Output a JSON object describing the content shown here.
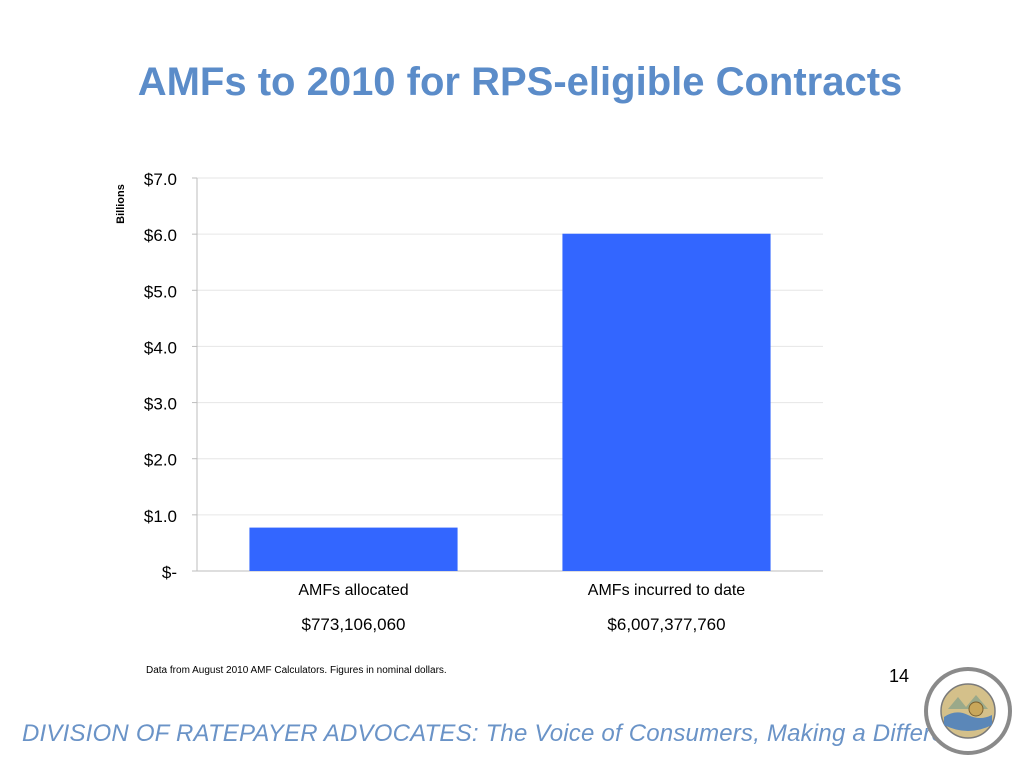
{
  "slide": {
    "title": "AMFs to 2010 for RPS-eligible Contracts",
    "source_note": "Data from August 2010 AMF Calculators. Figures in nominal dollars.",
    "page_number": "14",
    "footer": "DIVISION OF RATEPAYER ADVOCATES: The Voice of Consumers, Making a Difference!",
    "seal_icon": "california-puc-seal-icon",
    "seal_text": "PUBLIC UTILITIES COMMISSION · STATE OF CALIFORNIA · EUREKA"
  },
  "chart_data": {
    "type": "bar",
    "title": "",
    "xlabel": "",
    "ylabel": "Billions",
    "categories": [
      "AMFs allocated",
      "AMFs incurred to date"
    ],
    "value_labels": [
      "$773,106,060",
      "$6,007,377,760"
    ],
    "values": [
      0.77310606,
      6.00737776
    ],
    "ylim": [
      0,
      7
    ],
    "yticks": [
      0,
      1,
      2,
      3,
      4,
      5,
      6,
      7
    ],
    "ytick_labels": [
      "$-",
      "$1.0",
      "$2.0",
      "$3.0",
      "$4.0",
      "$5.0",
      "$6.0",
      "$7.0"
    ],
    "grid": true,
    "legend": "none",
    "bar_color": "#3366ff"
  }
}
